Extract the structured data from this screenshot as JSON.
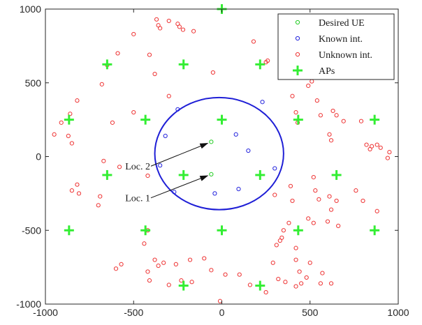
{
  "chart_data": {
    "type": "scatter",
    "title": "",
    "xlabel": "",
    "ylabel": "",
    "xlim": [
      -1000,
      1000
    ],
    "ylim": [
      -1000,
      1000
    ],
    "xticks": [
      -1000,
      -500,
      0,
      500,
      1000
    ],
    "yticks": [
      -1000,
      -500,
      0,
      500,
      1000
    ],
    "xtick_labels": [
      "-1000",
      "-500",
      "0",
      "500",
      "1000"
    ],
    "ytick_labels": [
      "-1000",
      "-500",
      "0",
      "500",
      "1000"
    ],
    "grid": false,
    "legend_position": "top-right",
    "series": [
      {
        "name": "Desired UE",
        "marker": "circle",
        "color": "#22cc22",
        "points": [
          [
            -60,
            100
          ],
          [
            -60,
            -120
          ]
        ]
      },
      {
        "name": "Known int.",
        "marker": "circle",
        "color": "#2222dd",
        "points": [
          [
            -250,
            320
          ],
          [
            -320,
            140
          ],
          [
            -350,
            -60
          ],
          [
            -270,
            -240
          ],
          [
            -40,
            -250
          ],
          [
            95,
            -220
          ],
          [
            80,
            150
          ],
          [
            150,
            40
          ],
          [
            230,
            370
          ],
          [
            300,
            -80
          ]
        ]
      },
      {
        "name": "Unknown int.",
        "marker": "circle",
        "color": "#ee3333",
        "points": [
          [
            -370,
            930
          ],
          [
            -360,
            890
          ],
          [
            -350,
            870
          ],
          [
            -300,
            920
          ],
          [
            -250,
            900
          ],
          [
            -240,
            880
          ],
          [
            -220,
            860
          ],
          [
            -160,
            850
          ],
          [
            -500,
            830
          ],
          [
            -590,
            700
          ],
          [
            -410,
            690
          ],
          [
            -650,
            620
          ],
          [
            -380,
            560
          ],
          [
            -50,
            570
          ],
          [
            180,
            780
          ],
          [
            260,
            650
          ],
          [
            250,
            640
          ],
          [
            -680,
            490
          ],
          [
            -820,
            380
          ],
          [
            -620,
            230
          ],
          [
            -500,
            300
          ],
          [
            -300,
            410
          ],
          [
            -860,
            290
          ],
          [
            -910,
            230
          ],
          [
            -950,
            150
          ],
          [
            -870,
            140
          ],
          [
            -850,
            90
          ],
          [
            -670,
            -30
          ],
          [
            -820,
            -190
          ],
          [
            -810,
            -250
          ],
          [
            -850,
            -230
          ],
          [
            -690,
            -270
          ],
          [
            -700,
            -330
          ],
          [
            -580,
            -70
          ],
          [
            -420,
            -130
          ],
          [
            510,
            510
          ],
          [
            490,
            480
          ],
          [
            400,
            410
          ],
          [
            540,
            380
          ],
          [
            420,
            300
          ],
          [
            430,
            230
          ],
          [
            560,
            280
          ],
          [
            630,
            310
          ],
          [
            650,
            280
          ],
          [
            690,
            240
          ],
          [
            790,
            240
          ],
          [
            610,
            150
          ],
          [
            620,
            110
          ],
          [
            820,
            80
          ],
          [
            850,
            70
          ],
          [
            880,
            80
          ],
          [
            840,
            50
          ],
          [
            900,
            60
          ],
          [
            950,
            30
          ],
          [
            940,
            -10
          ],
          [
            520,
            -140
          ],
          [
            390,
            -200
          ],
          [
            300,
            -260
          ],
          [
            400,
            -300
          ],
          [
            530,
            -230
          ],
          [
            550,
            -290
          ],
          [
            610,
            -270
          ],
          [
            650,
            -300
          ],
          [
            760,
            -230
          ],
          [
            800,
            -300
          ],
          [
            880,
            -370
          ],
          [
            620,
            -360
          ],
          [
            490,
            -420
          ],
          [
            520,
            -450
          ],
          [
            600,
            -440
          ],
          [
            660,
            -470
          ],
          [
            380,
            -450
          ],
          [
            350,
            -500
          ],
          [
            340,
            -550
          ],
          [
            330,
            -570
          ],
          [
            310,
            -600
          ],
          [
            420,
            -620
          ],
          [
            420,
            -700
          ],
          [
            290,
            -720
          ],
          [
            440,
            -780
          ],
          [
            500,
            -720
          ],
          [
            570,
            -790
          ],
          [
            620,
            -860
          ],
          [
            -440,
            -590
          ],
          [
            -420,
            -500
          ],
          [
            -380,
            -700
          ],
          [
            -420,
            -780
          ],
          [
            -570,
            -730
          ],
          [
            -600,
            -760
          ],
          [
            -410,
            -840
          ],
          [
            -300,
            -870
          ],
          [
            -230,
            -840
          ],
          [
            -170,
            -850
          ],
          [
            -60,
            -770
          ],
          [
            -100,
            -690
          ],
          [
            -180,
            -700
          ],
          [
            -260,
            -730
          ],
          [
            -330,
            -720
          ],
          [
            -360,
            -740
          ],
          [
            20,
            -800
          ],
          [
            100,
            -800
          ],
          [
            -10,
            -980
          ],
          [
            160,
            -870
          ],
          [
            250,
            -920
          ],
          [
            320,
            -830
          ],
          [
            360,
            -850
          ],
          [
            420,
            -880
          ],
          [
            450,
            -860
          ],
          [
            560,
            -860
          ],
          [
            480,
            -820
          ]
        ]
      },
      {
        "name": "APs",
        "marker": "plus",
        "color": "#33ee33",
        "points": [
          [
            0,
            1000
          ],
          [
            -217,
            625
          ],
          [
            217,
            625
          ],
          [
            -650,
            625
          ],
          [
            650,
            625
          ],
          [
            -866,
            250
          ],
          [
            -433,
            250
          ],
          [
            0,
            250
          ],
          [
            433,
            250
          ],
          [
            866,
            250
          ],
          [
            -650,
            -125
          ],
          [
            -217,
            -125
          ],
          [
            217,
            -125
          ],
          [
            650,
            -125
          ],
          [
            -866,
            -500
          ],
          [
            -433,
            -500
          ],
          [
            0,
            -500
          ],
          [
            433,
            -500
          ],
          [
            866,
            -500
          ],
          [
            -217,
            -875
          ],
          [
            217,
            -875
          ]
        ]
      }
    ],
    "shapes": [
      {
        "type": "circle",
        "color": "#1f1fd6",
        "center": [
          -15,
          20
        ],
        "radius_x": 365,
        "radius_y": 380
      }
    ],
    "annotations": [
      {
        "text": "Loc. 2",
        "arrow_from": [
          -410,
          -65
        ],
        "arrow_to": [
          -60,
          100
        ]
      },
      {
        "text": "Loc. 1",
        "arrow_from": [
          -410,
          -280
        ],
        "arrow_to": [
          -60,
          -120
        ]
      }
    ]
  }
}
